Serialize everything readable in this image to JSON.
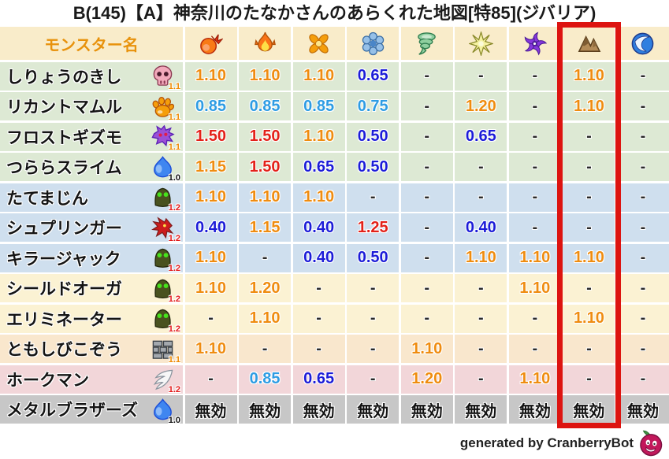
{
  "title": "B(145)【A】神奈川のたなかさんのあらくれた地図[特85](ジバリア)",
  "chart_data": {
    "type": "table",
    "title": "B(145)【A】神奈川のたなかさんのあらくれた地図[特85](ジバリア)",
    "name_header": "モンスター名",
    "element_columns": [
      "fireball-icon",
      "flame-icon",
      "burst-icon",
      "snowflake-icon",
      "tornado-icon",
      "spark-icon",
      "pinwheel-icon",
      "mountain-icon",
      "wave-icon"
    ],
    "highlighted_column": "mountain-icon",
    "highlighted_column_index": 7,
    "rows": [
      {
        "name": "しりょうのきし",
        "icon": "skull-icon",
        "badge": "1.1",
        "badge_color": "orange",
        "row_color": "green",
        "values": [
          "1.10",
          "1.10",
          "1.10",
          "0.65",
          "-",
          "-",
          "-",
          "1.10",
          "-"
        ]
      },
      {
        "name": "リカントマムル",
        "icon": "paw-icon",
        "badge": "1.1",
        "badge_color": "orange",
        "row_color": "green",
        "values": [
          "0.85",
          "0.85",
          "0.85",
          "0.75",
          "-",
          "1.20",
          "-",
          "1.10",
          "-"
        ]
      },
      {
        "name": "フロストギズモ",
        "icon": "ghost-icon",
        "badge": "1.1",
        "badge_color": "orange",
        "row_color": "green",
        "values": [
          "1.50",
          "1.50",
          "1.10",
          "0.50",
          "-",
          "0.65",
          "-",
          "-",
          "-"
        ]
      },
      {
        "name": "つららスライム",
        "icon": "slime-icon",
        "badge": "1.0",
        "badge_color": "black",
        "row_color": "green",
        "values": [
          "1.15",
          "1.50",
          "0.65",
          "0.50",
          "-",
          "-",
          "-",
          "-",
          "-"
        ]
      },
      {
        "name": "たてまじん",
        "icon": "dome-icon",
        "badge": "1.2",
        "badge_color": "red",
        "row_color": "blue",
        "values": [
          "1.10",
          "1.10",
          "1.10",
          "-",
          "-",
          "-",
          "-",
          "-",
          "-"
        ]
      },
      {
        "name": "シュプリンガー",
        "icon": "dragon-icon",
        "badge": "1.2",
        "badge_color": "red",
        "row_color": "blue",
        "values": [
          "0.40",
          "1.15",
          "0.40",
          "1.25",
          "-",
          "0.40",
          "-",
          "-",
          "-"
        ]
      },
      {
        "name": "キラージャック",
        "icon": "dome-icon",
        "badge": "1.2",
        "badge_color": "red",
        "row_color": "blue",
        "values": [
          "1.10",
          "-",
          "0.40",
          "0.50",
          "-",
          "1.10",
          "1.10",
          "1.10",
          "-"
        ]
      },
      {
        "name": "シールドオーガ",
        "icon": "dome-icon",
        "badge": "1.2",
        "badge_color": "red",
        "row_color": "cream",
        "values": [
          "1.10",
          "1.20",
          "-",
          "-",
          "-",
          "-",
          "1.10",
          "-",
          "-"
        ]
      },
      {
        "name": "エリミネーター",
        "icon": "dome-icon",
        "badge": "1.2",
        "badge_color": "red",
        "row_color": "cream",
        "values": [
          "-",
          "1.10",
          "-",
          "-",
          "-",
          "-",
          "-",
          "1.10",
          "-"
        ]
      },
      {
        "name": "ともしびこぞう",
        "icon": "bricks-icon",
        "badge": "1.1",
        "badge_color": "orange",
        "row_color": "peach",
        "values": [
          "1.10",
          "-",
          "-",
          "-",
          "1.10",
          "-",
          "-",
          "-",
          "-"
        ]
      },
      {
        "name": "ホークマン",
        "icon": "wing-icon",
        "badge": "1.2",
        "badge_color": "red",
        "row_color": "pink",
        "values": [
          "-",
          "0.85",
          "0.65",
          "-",
          "1.20",
          "-",
          "1.10",
          "-",
          "-"
        ]
      },
      {
        "name": "メタルブラザーズ",
        "icon": "slime-icon",
        "badge": "1.0",
        "badge_color": "black",
        "row_color": "gray",
        "values": [
          "無効",
          "無効",
          "無効",
          "無効",
          "無効",
          "無効",
          "無効",
          "無効",
          "無効"
        ]
      }
    ],
    "immune_label": "無効",
    "legend": "none",
    "grid": "white 2.5px gaps between cells"
  },
  "colors": {
    "header_bg": "#f9ecca",
    "header_text": "#e8920c",
    "row_green": "#dde9d4",
    "row_blue": "#cfdfee",
    "row_cream": "#fbf2d3",
    "row_peach": "#f9e7cd",
    "row_pink": "#f2d6d9",
    "row_gray": "#c7c7c7",
    "value_red": "#e32119",
    "value_orange": "#ef8c10",
    "value_lightblue": "#2e9ce3",
    "value_darkblue": "#1c1cd8",
    "badge_orange": "#f08a00",
    "badge_red": "#e31919",
    "badge_black": "#111111",
    "highlight_border": "#dd1410"
  },
  "footer": {
    "credit": "generated by CranberryBot"
  }
}
